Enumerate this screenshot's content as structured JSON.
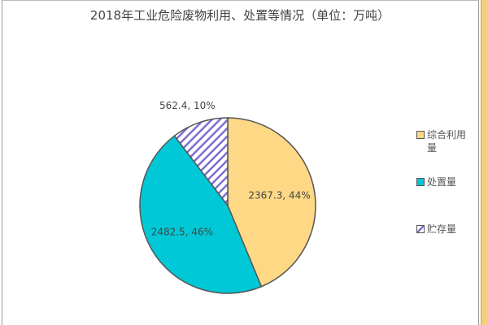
{
  "chart_data": {
    "type": "pie",
    "title": "2018年工业危险废物利用、处置等情况（单位：万吨）",
    "slices": [
      {
        "name": "综合利用量",
        "value": 2367.3,
        "percent": 44,
        "label": "2367.3, 44%",
        "color": "#FFD885",
        "pattern": "solid"
      },
      {
        "name": "处置量",
        "value": 2482.5,
        "percent": 46,
        "label": "2482.5, 46%",
        "color": "#00C8D6",
        "pattern": "solid"
      },
      {
        "name": "贮存量",
        "value": 562.4,
        "percent": 10,
        "label": "562.4, 10%",
        "color": "#7B6FD0",
        "pattern": "hatch"
      }
    ],
    "legend_placement": "right",
    "legend": [
      "综合利用量",
      "处置量",
      "贮存量"
    ]
  }
}
